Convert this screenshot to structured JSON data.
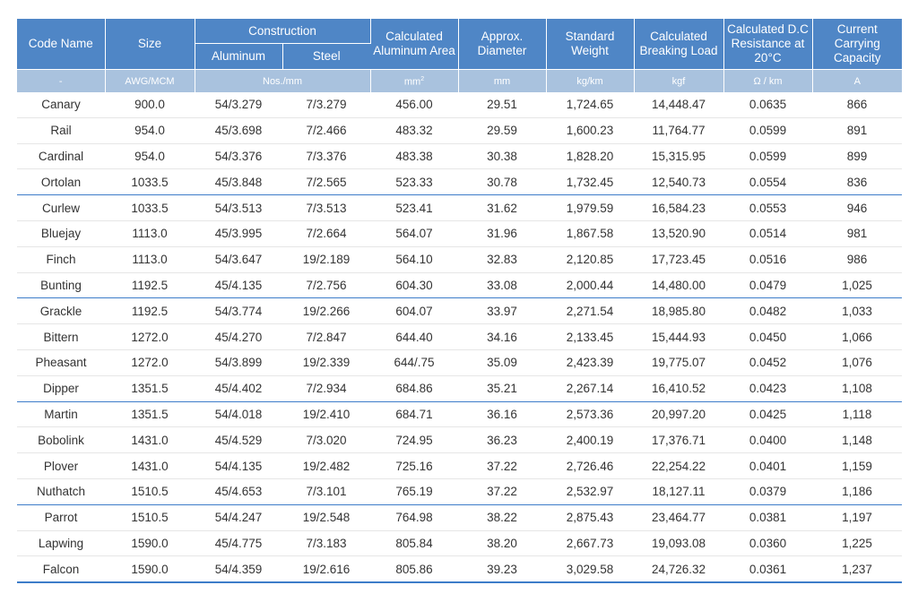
{
  "headers": {
    "code_name": "Code Name",
    "size": "Size",
    "construction": "Construction",
    "aluminum": "Aluminum",
    "steel": "Steel",
    "area_line1": "Calculated",
    "area_line2": "Aluminum Area",
    "diameter_line1": "Approx.",
    "diameter_line2": "Diameter",
    "weight_line1": "Standard",
    "weight_line2": "Weight",
    "load_line1": "Calculated",
    "load_line2": "Breaking Load",
    "resist_line1": "Calculated D.C",
    "resist_line2": "Resistance at 20°C",
    "capacity_line1": "Current Carrying",
    "capacity_line2": "Capacity"
  },
  "units": {
    "code_name": "-",
    "size": "AWG/MCM",
    "construction": "Nos./mm",
    "area": "mm",
    "area_sup": "2",
    "diameter": "mm",
    "weight": "kg/km",
    "load": "kgf",
    "resistance": "Ω / km",
    "capacity": "A"
  },
  "rows": [
    [
      "Canary",
      "900.0",
      "54/3.279",
      "7/3.279",
      "456.00",
      "29.51",
      "1,724.65",
      "14,448.47",
      "0.0635",
      "866"
    ],
    [
      "Rail",
      "954.0",
      "45/3.698",
      "7/2.466",
      "483.32",
      "29.59",
      "1,600.23",
      "11,764.77",
      "0.0599",
      "891"
    ],
    [
      "Cardinal",
      "954.0",
      "54/3.376",
      "7/3.376",
      "483.38",
      "30.38",
      "1,828.20",
      "15,315.95",
      "0.0599",
      "899"
    ],
    [
      "Ortolan",
      "1033.5",
      "45/3.848",
      "7/2.565",
      "523.33",
      "30.78",
      "1,732.45",
      "12,540.73",
      "0.0554",
      "836"
    ],
    [
      "Curlew",
      "1033.5",
      "54/3.513",
      "7/3.513",
      "523.41",
      "31.62",
      "1,979.59",
      "16,584.23",
      "0.0553",
      "946"
    ],
    [
      "Bluejay",
      "1113.0",
      "45/3.995",
      "7/2.664",
      "564.07",
      "31.96",
      "1,867.58",
      "13,520.90",
      "0.0514",
      "981"
    ],
    [
      "Finch",
      "1113.0",
      "54/3.647",
      "19/2.189",
      "564.10",
      "32.83",
      "2,120.85",
      "17,723.45",
      "0.0516",
      "986"
    ],
    [
      "Bunting",
      "1192.5",
      "45/4.135",
      "7/2.756",
      "604.30",
      "33.08",
      "2,000.44",
      "14,480.00",
      "0.0479",
      "1,025"
    ],
    [
      "Grackle",
      "1192.5",
      "54/3.774",
      "19/2.266",
      "604.07",
      "33.97",
      "2,271.54",
      "18,985.80",
      "0.0482",
      "1,033"
    ],
    [
      "Bittern",
      "1272.0",
      "45/4.270",
      "7/2.847",
      "644.40",
      "34.16",
      "2,133.45",
      "15,444.93",
      "0.0450",
      "1,066"
    ],
    [
      "Pheasant",
      "1272.0",
      "54/3.899",
      "19/2.339",
      "644/.75",
      "35.09",
      "2,423.39",
      "19,775.07",
      "0.0452",
      "1,076"
    ],
    [
      "Dipper",
      "1351.5",
      "45/4.402",
      "7/2.934",
      "684.86",
      "35.21",
      "2,267.14",
      "16,410.52",
      "0.0423",
      "1,108"
    ],
    [
      "Martin",
      "1351.5",
      "54/4.018",
      "19/2.410",
      "684.71",
      "36.16",
      "2,573.36",
      "20,997.20",
      "0.0425",
      "1,118"
    ],
    [
      "Bobolink",
      "1431.0",
      "45/4.529",
      "7/3.020",
      "724.95",
      "36.23",
      "2,400.19",
      "17,376.71",
      "0.0400",
      "1,148"
    ],
    [
      "Plover",
      "1431.0",
      "54/4.135",
      "19/2.482",
      "725.16",
      "37.22",
      "2,726.46",
      "22,254.22",
      "0.0401",
      "1,159"
    ],
    [
      "Nuthatch",
      "1510.5",
      "45/4.653",
      "7/3.101",
      "765.19",
      "37.22",
      "2,532.97",
      "18,127.11",
      "0.0379",
      "1,186"
    ],
    [
      "Parrot",
      "1510.5",
      "54/4.247",
      "19/2.548",
      "764.98",
      "38.22",
      "2,875.43",
      "23,464.77",
      "0.0381",
      "1,197"
    ],
    [
      "Lapwing",
      "1590.0",
      "45/4.775",
      "7/3.183",
      "805.84",
      "38.20",
      "2,667.73",
      "19,093.08",
      "0.0360",
      "1,225"
    ],
    [
      "Falcon",
      "1590.0",
      "54/4.359",
      "19/2.616",
      "805.86",
      "39.23",
      "3,029.58",
      "24,726.32",
      "0.0361",
      "1,237"
    ]
  ]
}
